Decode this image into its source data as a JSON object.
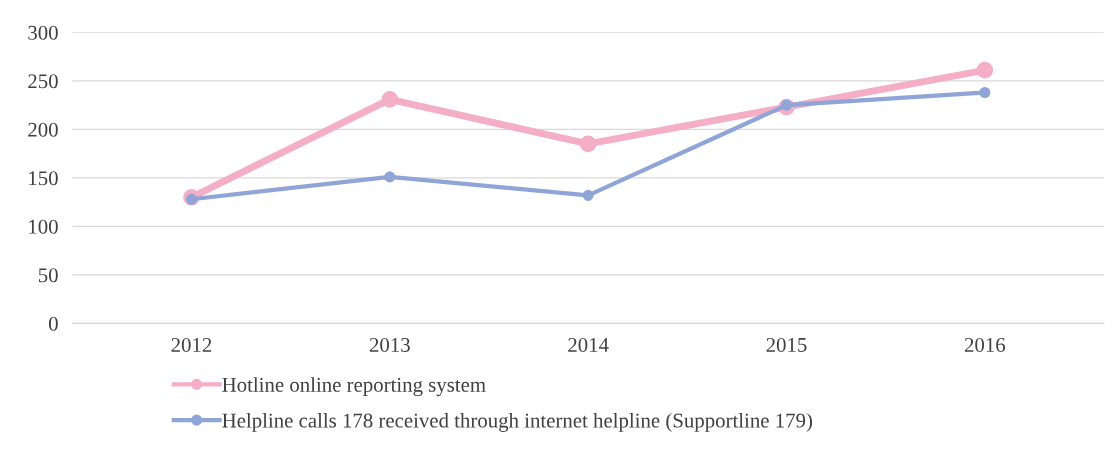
{
  "chart_data": {
    "type": "line",
    "categories": [
      "2012",
      "2013",
      "2014",
      "2015",
      "2016"
    ],
    "series": [
      {
        "name": "Hotline online reporting system",
        "color": "#f4aec6",
        "values": [
          130,
          231,
          185,
          223,
          261
        ]
      },
      {
        "name": "Helpline calls 178 received through internet helpline (Supportline 179)",
        "color": "#8fa5d8",
        "values": [
          128,
          151,
          132,
          225,
          238
        ]
      }
    ],
    "ylim": [
      0,
      300
    ],
    "yticks": [
      0,
      50,
      100,
      150,
      200,
      250,
      300
    ],
    "grid": "y",
    "legend": "bottom",
    "marker": "circle",
    "line_style": "solid"
  }
}
